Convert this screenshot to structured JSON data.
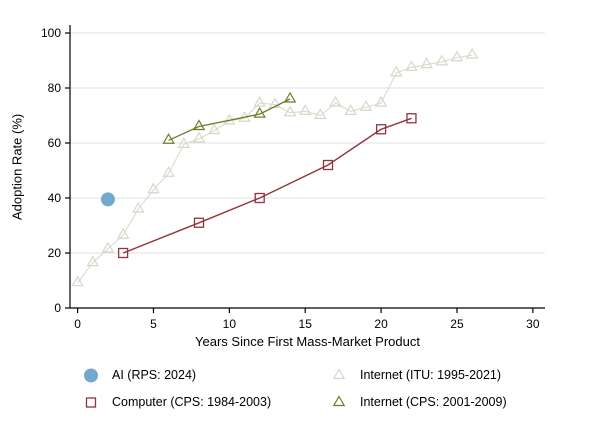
{
  "figure": {
    "background": "#ffffff"
  },
  "chart_data": {
    "type": "scatter",
    "title": "",
    "xlabel": "Years Since First Mass-Market Product",
    "ylabel": "Adoption Rate (%)",
    "xlim": [
      -0.5,
      30.8
    ],
    "ylim": [
      0,
      100
    ],
    "xticks": [
      0,
      5,
      10,
      15,
      20,
      25,
      30
    ],
    "yticks": [
      0,
      20,
      40,
      60,
      80,
      100
    ],
    "grid": "horizontal",
    "grid_color": "#e0e0e0",
    "axis_color": "#000000",
    "legend_position": "bottom-two-columns",
    "legend_order": [
      3,
      0,
      2,
      1
    ],
    "series": [
      {
        "id": "internet-itu",
        "name": "Internet (ITU: 1995-2021)",
        "marker": "triangle-open",
        "color": "#d4d8c8",
        "line": true,
        "line_width": 1,
        "points": [
          [
            0,
            9.2
          ],
          [
            1,
            16.5
          ],
          [
            2,
            21.5
          ],
          [
            3,
            26.5
          ],
          [
            4,
            36
          ],
          [
            5,
            43
          ],
          [
            6,
            49
          ],
          [
            7,
            59.5
          ],
          [
            8,
            61.5
          ],
          [
            9,
            64.5
          ],
          [
            10,
            68
          ],
          [
            11,
            69
          ],
          [
            12,
            74.5
          ],
          [
            13,
            74
          ],
          [
            14,
            71
          ],
          [
            15,
            71.5
          ],
          [
            16,
            70
          ],
          [
            17,
            74.5
          ],
          [
            18,
            71.5
          ],
          [
            19,
            73
          ],
          [
            20,
            74.5
          ],
          [
            21,
            85.5
          ],
          [
            22,
            87.5
          ],
          [
            23,
            88.5
          ],
          [
            24,
            89.5
          ],
          [
            25,
            91
          ],
          [
            26,
            92
          ]
        ]
      },
      {
        "id": "internet-cps",
        "name": "Internet (CPS: 2001-2009)",
        "marker": "triangle-open",
        "color": "#6d7b2c",
        "line": true,
        "line_width": 1.3,
        "points": [
          [
            6,
            61
          ],
          [
            8,
            66
          ],
          [
            12,
            70.5
          ],
          [
            14,
            76
          ]
        ]
      },
      {
        "id": "computer-cps",
        "name": "Computer (CPS: 1984-2003)",
        "marker": "square-open",
        "color": "#90353b",
        "line": true,
        "line_width": 1.4,
        "points": [
          [
            3,
            20
          ],
          [
            8,
            31
          ],
          [
            12,
            40
          ],
          [
            16.5,
            52
          ],
          [
            20,
            65
          ],
          [
            22,
            69
          ]
        ]
      },
      {
        "id": "ai-rps",
        "name": "AI (RPS: 2024)",
        "marker": "circle-filled",
        "color": "#74a9cf",
        "line": false,
        "line_width": 0,
        "points": [
          [
            2,
            39.5
          ]
        ]
      }
    ]
  }
}
